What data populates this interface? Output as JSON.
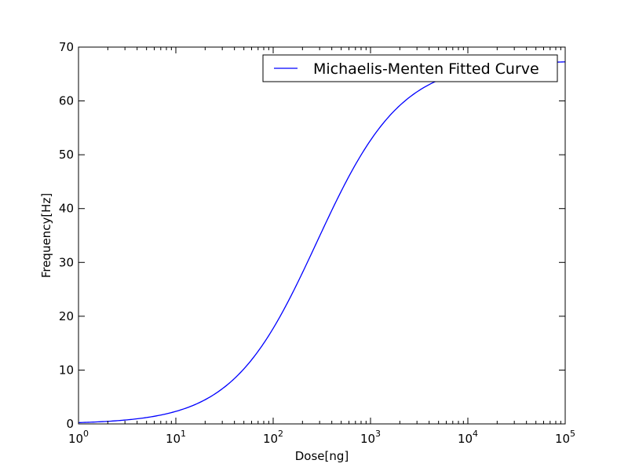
{
  "chart_data": {
    "type": "line",
    "xlabel": "Dose[ng]",
    "ylabel": "Frequency[Hz]",
    "xscale": "log",
    "xlim": [
      1,
      100000
    ],
    "ylim": [
      0,
      70
    ],
    "x_ticks": [
      {
        "base": "10",
        "exp": "0"
      },
      {
        "base": "10",
        "exp": "1"
      },
      {
        "base": "10",
        "exp": "2"
      },
      {
        "base": "10",
        "exp": "3"
      },
      {
        "base": "10",
        "exp": "4"
      },
      {
        "base": "10",
        "exp": "5"
      }
    ],
    "y_ticks": [
      "0",
      "10",
      "20",
      "30",
      "40",
      "50",
      "60",
      "70"
    ],
    "grid": false,
    "legend": {
      "position": "top-right",
      "entries": [
        "Michaelis-Menten Fitted Curve"
      ]
    },
    "series": [
      {
        "name": "Michaelis-Menten Fitted Curve",
        "color": "#0000ff",
        "x": [
          1,
          2,
          3,
          5,
          10,
          20,
          30,
          50,
          100,
          200,
          300,
          500,
          1000,
          2000,
          3000,
          5000,
          10000,
          20000,
          50000,
          100000
        ],
        "y": [
          0.24,
          0.48,
          0.72,
          1.2,
          2.4,
          4.7,
          6.9,
          11.2,
          20.9,
          33.5,
          41.2,
          49.8,
          57.9,
          62.4,
          63.9,
          65.2,
          66.3,
          66.8,
          67.1,
          67.2
        ]
      }
    ]
  }
}
